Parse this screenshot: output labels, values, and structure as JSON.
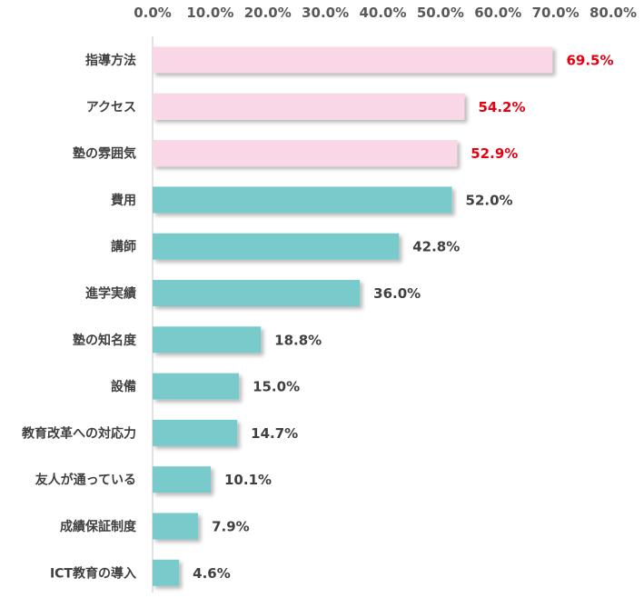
{
  "chart_data": {
    "type": "bar",
    "orientation": "horizontal",
    "title": "",
    "xlabel": "",
    "ylabel": "",
    "xlim": [
      0,
      80
    ],
    "tick_labels": [
      "0.0%",
      "10.0%",
      "20.0%",
      "30.0%",
      "40.0%",
      "50.0%",
      "60.0%",
      "70.0%",
      "80.0%"
    ],
    "categories": [
      "指導方法",
      "アクセス",
      "塾の雰囲気",
      "費用",
      "講師",
      "進学実績",
      "塾の知名度",
      "設備",
      "教育改革への対応力",
      "友人が通っている",
      "成績保証制度",
      "ICT教育の導入"
    ],
    "values": [
      69.5,
      54.2,
      52.9,
      52.0,
      42.8,
      36.0,
      18.8,
      15.0,
      14.7,
      10.1,
      7.9,
      4.6
    ],
    "value_labels": [
      "69.5%",
      "54.2%",
      "52.9%",
      "52.0%",
      "42.8%",
      "36.0%",
      "18.8%",
      "15.0%",
      "14.7%",
      "10.1%",
      "7.9%",
      "4.6%"
    ],
    "highlight_top_n": 3,
    "colors": {
      "highlight_bar": "#f9d7e6",
      "normal_bar": "#79cbcb",
      "highlight_label": "#e50012",
      "normal_label": "#404040",
      "axis": "#d9d9d9"
    },
    "grid": false,
    "legend": "none"
  }
}
